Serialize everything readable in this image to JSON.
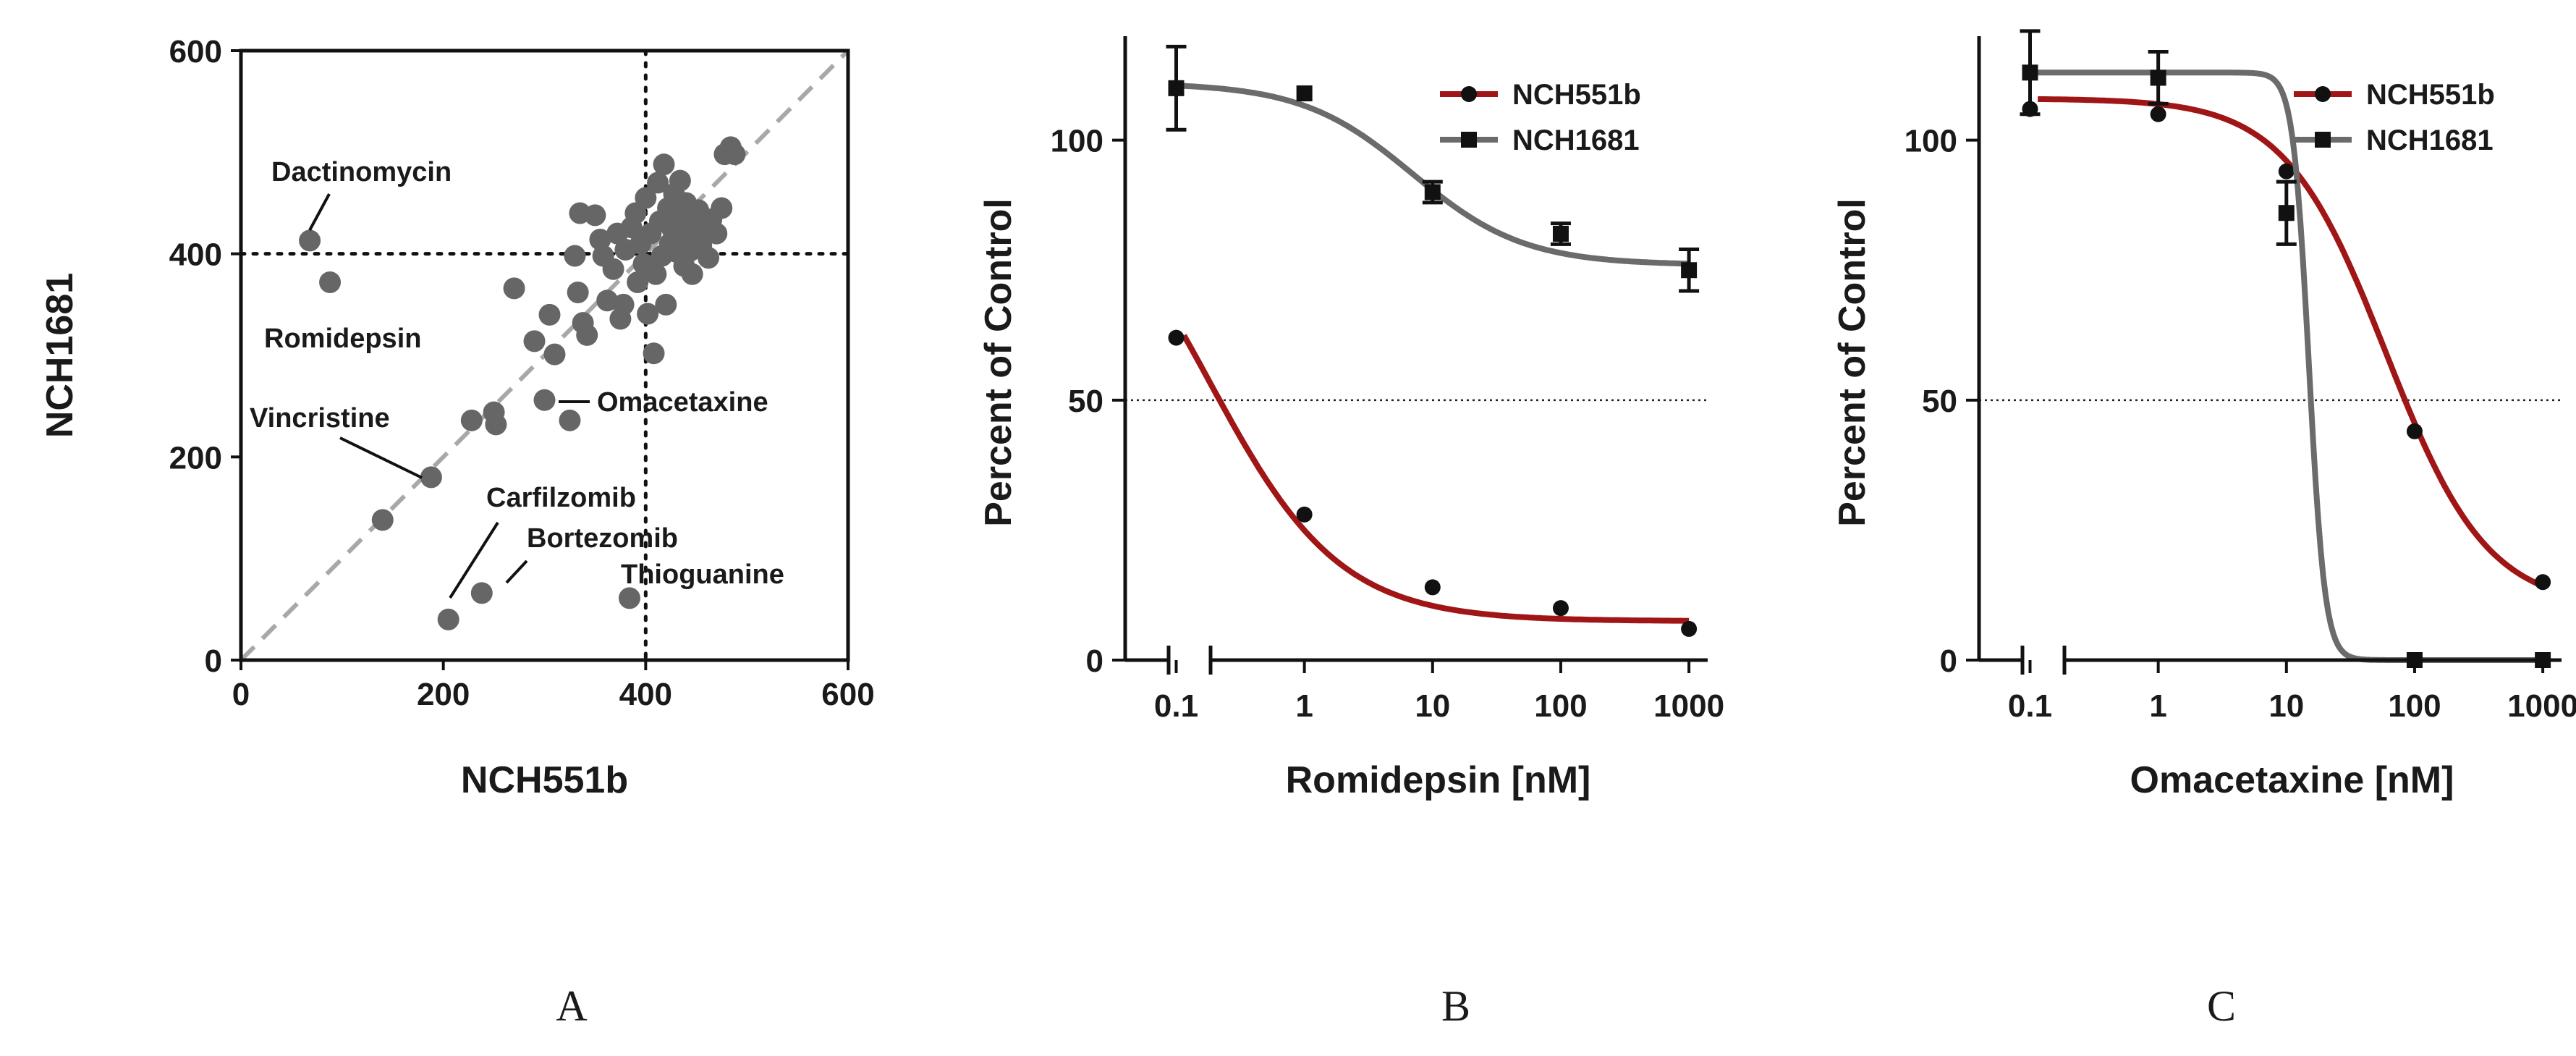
{
  "chart_data": [
    {
      "panel": "A",
      "type": "scatter",
      "xlabel": "NCH551b",
      "ylabel": "NCH1681",
      "xlim": [
        0,
        600
      ],
      "ylim": [
        0,
        600
      ],
      "xticks": [
        "0",
        "200",
        "400",
        "600"
      ],
      "yticks": [
        "0",
        "200",
        "400",
        "600"
      ],
      "reference_lines": {
        "x": 400,
        "y": 400,
        "style": "dotted"
      },
      "identity_line": {
        "from": [
          0,
          0
        ],
        "to": [
          600,
          600
        ],
        "style": "dashed",
        "color": "#a8a8a8"
      },
      "marker_color": "#666666",
      "points": [
        [
          68,
          413
        ],
        [
          88,
          372
        ],
        [
          140,
          138
        ],
        [
          188,
          180
        ],
        [
          205,
          40
        ],
        [
          228,
          236
        ],
        [
          238,
          66
        ],
        [
          250,
          244
        ],
        [
          252,
          232
        ],
        [
          270,
          366
        ],
        [
          290,
          314
        ],
        [
          300,
          256
        ],
        [
          305,
          340
        ],
        [
          310,
          301
        ],
        [
          325,
          236
        ],
        [
          330,
          398
        ],
        [
          333,
          362
        ],
        [
          335,
          440
        ],
        [
          338,
          332
        ],
        [
          342,
          320
        ],
        [
          350,
          438
        ],
        [
          355,
          414
        ],
        [
          358,
          398
        ],
        [
          362,
          354
        ],
        [
          368,
          385
        ],
        [
          372,
          420
        ],
        [
          375,
          336
        ],
        [
          378,
          350
        ],
        [
          380,
          404
        ],
        [
          384,
          61
        ],
        [
          386,
          426
        ],
        [
          390,
          440
        ],
        [
          392,
          372
        ],
        [
          395,
          410
        ],
        [
          398,
          390
        ],
        [
          400,
          455
        ],
        [
          402,
          341
        ],
        [
          405,
          420
        ],
        [
          408,
          302
        ],
        [
          410,
          380
        ],
        [
          412,
          470
        ],
        [
          414,
          432
        ],
        [
          416,
          398
        ],
        [
          418,
          488
        ],
        [
          420,
          350
        ],
        [
          422,
          445
        ],
        [
          424,
          410
        ],
        [
          426,
          425
        ],
        [
          428,
          459
        ],
        [
          430,
          402
        ],
        [
          432,
          437
        ],
        [
          434,
          472
        ],
        [
          436,
          415
        ],
        [
          438,
          388
        ],
        [
          440,
          450
        ],
        [
          442,
          427
        ],
        [
          444,
          403
        ],
        [
          446,
          380
        ],
        [
          448,
          430
        ],
        [
          450,
          418
        ],
        [
          452,
          443
        ],
        [
          455,
          408
        ],
        [
          458,
          425
        ],
        [
          462,
          396
        ],
        [
          465,
          434
        ],
        [
          470,
          420
        ],
        [
          475,
          445
        ],
        [
          478,
          498
        ],
        [
          484,
          505
        ],
        [
          488,
          498
        ]
      ],
      "annotations": [
        {
          "label": "Dactinomycin",
          "x": 68,
          "y": 413
        },
        {
          "label": "Romidepsin",
          "x": 88,
          "y": 372
        },
        {
          "label": "Vincristine",
          "x": 188,
          "y": 180
        },
        {
          "label": "Omacetaxine",
          "x": 300,
          "y": 256
        },
        {
          "label": "Carfilzomib",
          "x": 205,
          "y": 40
        },
        {
          "label": "Bortezomib",
          "x": 238,
          "y": 66
        },
        {
          "label": "Thioguanine",
          "x": 384,
          "y": 61
        }
      ]
    },
    {
      "panel": "B",
      "type": "line",
      "xscale": "log",
      "xlabel": "Romidepsin [nM]",
      "ylabel": "Percent of Control",
      "xlim": [
        0.04,
        1400
      ],
      "ylim": [
        0,
        120
      ],
      "xticks": [
        0.1,
        1,
        10,
        100,
        1000
      ],
      "xtick_labels": [
        "0.1",
        "1",
        "10",
        "100",
        "1000"
      ],
      "yticks": [
        0,
        50,
        100
      ],
      "ytick_labels": [
        "0",
        "50",
        "100"
      ],
      "reference_y": 50,
      "legend": {
        "position": "top-right"
      },
      "series": [
        {
          "name": "NCH551b",
          "color": "#a01616",
          "marker": "circle",
          "x": [
            0.1,
            1,
            10,
            100,
            1000
          ],
          "y": [
            62,
            28,
            14,
            10,
            6
          ],
          "error": [
            0,
            0,
            0,
            0,
            0
          ],
          "fit": {
            "bottom": 7.5,
            "top": 100,
            "ic50": 0.18,
            "hill": 0.85
          }
        },
        {
          "name": "NCH1681",
          "color": "#6b6b6b",
          "marker": "square",
          "x": [
            0.1,
            1,
            10,
            100,
            1000
          ],
          "y": [
            110,
            109,
            90,
            82,
            75
          ],
          "error": [
            8,
            0,
            2,
            2,
            4
          ],
          "fit": {
            "bottom": 76,
            "top": 111,
            "ic50": 7,
            "hill": 1
          }
        }
      ]
    },
    {
      "panel": "C",
      "type": "line",
      "xscale": "log",
      "xlabel": "Omacetaxine [nM]",
      "ylabel": "Percent of Control",
      "xlim": [
        0.04,
        1400
      ],
      "ylim": [
        0,
        120
      ],
      "xticks": [
        0.1,
        1,
        10,
        100,
        1000
      ],
      "xtick_labels": [
        "0.1",
        "1",
        "10",
        "100",
        "1000"
      ],
      "yticks": [
        0,
        50,
        100
      ],
      "ytick_labels": [
        "0",
        "50",
        "100"
      ],
      "reference_y": 50,
      "legend": {
        "position": "top-right"
      },
      "series": [
        {
          "name": "NCH551b",
          "color": "#a01616",
          "marker": "circle",
          "x": [
            0.1,
            1,
            10,
            100,
            1000
          ],
          "y": [
            106,
            105,
            94,
            44,
            15
          ],
          "error": [
            0,
            0,
            0,
            0,
            0
          ],
          "fit": {
            "bottom": 10,
            "top": 108,
            "ic50": 60,
            "hill": 1.1
          }
        },
        {
          "name": "NCH1681",
          "color": "#6b6b6b",
          "marker": "square",
          "x": [
            0.1,
            1,
            10,
            100,
            1000
          ],
          "y": [
            113,
            112,
            86,
            0,
            0
          ],
          "error": [
            8,
            5,
            6,
            0,
            0
          ],
          "fit": {
            "bottom": 0,
            "top": 113,
            "ic50": 15,
            "hill": 7
          }
        }
      ]
    }
  ],
  "panel_letters": [
    "A",
    "B",
    "C"
  ]
}
